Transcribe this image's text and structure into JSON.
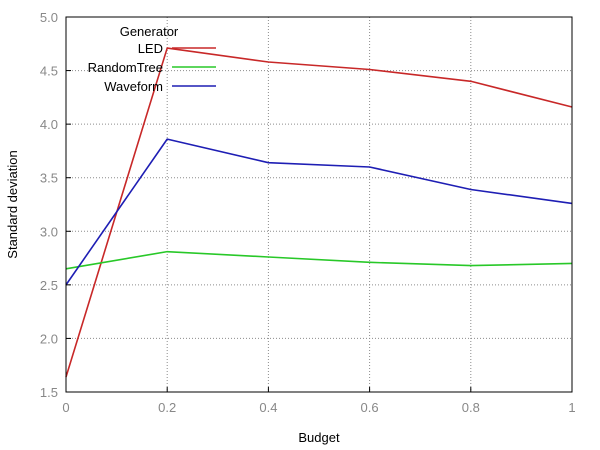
{
  "chart_data": {
    "type": "line",
    "xlabel": "Budget",
    "ylabel": "Standard deviation",
    "x": [
      0,
      0.2,
      0.4,
      0.6,
      0.8,
      1
    ],
    "xlim": [
      0,
      1
    ],
    "ylim": [
      1.5,
      5.0
    ],
    "x_ticks": [
      "0",
      "0.2",
      "0.4",
      "0.6",
      "0.8",
      "1"
    ],
    "y_ticks": [
      "1.5",
      "2.0",
      "2.5",
      "3.0",
      "3.5",
      "4.0",
      "4.5",
      "5.0"
    ],
    "grid": true,
    "legend": {
      "title": "Generator",
      "placement": "top-left"
    },
    "series": [
      {
        "name": "LED",
        "color": "#c82828",
        "values": [
          1.64,
          4.71,
          4.58,
          4.51,
          4.4,
          4.16
        ]
      },
      {
        "name": "RandomTree",
        "color": "#28c828",
        "values": [
          2.65,
          2.81,
          2.76,
          2.71,
          2.68,
          2.7
        ]
      },
      {
        "name": "Waveform",
        "color": "#1e1eb4",
        "values": [
          2.5,
          3.86,
          3.64,
          3.6,
          3.39,
          3.26
        ]
      }
    ]
  }
}
